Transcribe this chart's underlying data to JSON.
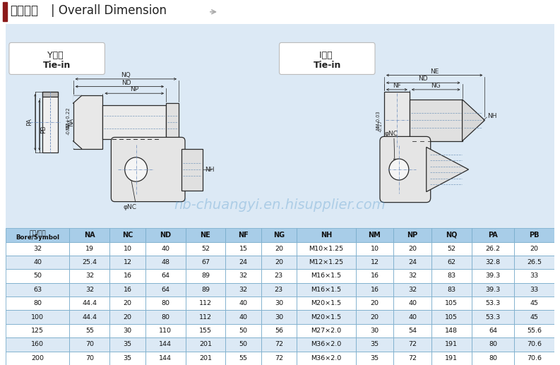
{
  "title_chinese": "外形尺寸",
  "title_english": "| Overall Dimension",
  "title_bar_color": "#8B1A1A",
  "bg_color": "#FFFFFF",
  "diagram_bg_color": "#DCE9F5",
  "header_bg_color": "#A8CDE8",
  "row_colors": [
    "#FFFFFF",
    "#DCE9F5"
  ],
  "border_color": "#7AADCC",
  "text_color": "#1a1a1a",
  "watermark": "nb-chuangyi.en.hisupplier.com",
  "y_label_cn": "Y接头",
  "y_label_en": "Tie-in",
  "i_label_cn": "I接头",
  "i_label_en": "Tie-in",
  "columns": [
    "缸径/符号\nBore/Symbol",
    "NA",
    "NC",
    "ND",
    "NE",
    "NF",
    "NG",
    "NH",
    "NM",
    "NP",
    "NQ",
    "PA",
    "PB"
  ],
  "rows": [
    [
      "32",
      "19",
      "10",
      "40",
      "52",
      "15",
      "20",
      "M10×1.25",
      "10",
      "20",
      "52",
      "26.2",
      "20"
    ],
    [
      "40",
      "25.4",
      "12",
      "48",
      "67",
      "24",
      "20",
      "M12×1.25",
      "12",
      "24",
      "62",
      "32.8",
      "26.5"
    ],
    [
      "50",
      "32",
      "16",
      "64",
      "89",
      "32",
      "23",
      "M16×1.5",
      "16",
      "32",
      "83",
      "39.3",
      "33"
    ],
    [
      "63",
      "32",
      "16",
      "64",
      "89",
      "32",
      "23",
      "M16×1.5",
      "16",
      "32",
      "83",
      "39.3",
      "33"
    ],
    [
      "80",
      "44.4",
      "20",
      "80",
      "112",
      "40",
      "30",
      "M20×1.5",
      "20",
      "40",
      "105",
      "53.3",
      "45"
    ],
    [
      "100",
      "44.4",
      "20",
      "80",
      "112",
      "40",
      "30",
      "M20×1.5",
      "20",
      "40",
      "105",
      "53.3",
      "45"
    ],
    [
      "125",
      "55",
      "30",
      "110",
      "155",
      "50",
      "56",
      "M27×2.0",
      "30",
      "54",
      "148",
      "64",
      "55.6"
    ],
    [
      "160",
      "70",
      "35",
      "144",
      "201",
      "50",
      "72",
      "M36×2.0",
      "35",
      "72",
      "191",
      "80",
      "70.6"
    ],
    [
      "200",
      "70",
      "35",
      "144",
      "201",
      "55",
      "72",
      "M36×2.0",
      "35",
      "72",
      "191",
      "80",
      "70.6"
    ]
  ]
}
